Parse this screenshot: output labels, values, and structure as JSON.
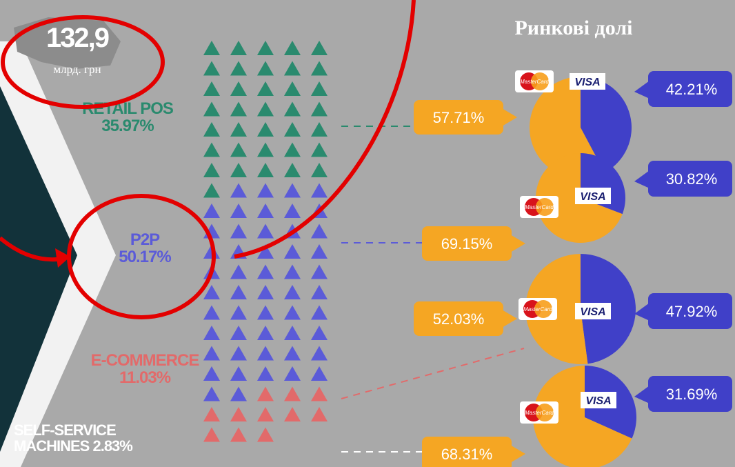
{
  "total": {
    "amount": "132,9",
    "unit": "млрд. грн"
  },
  "segments": [
    {
      "name": "RETAIL POS",
      "share": 35.97,
      "share_label": "35.97%",
      "color": "#2a8a6e"
    },
    {
      "name": "P2P",
      "share": 50.17,
      "share_label": "50.17%",
      "color": "#5b5bd8"
    },
    {
      "name": "E-COMMERCE",
      "share": 11.03,
      "share_label": "11.03%",
      "color": "#e26a6a"
    },
    {
      "name": "SELF-SERVICE MACHINES",
      "share": 2.83,
      "share_label": "2.83%",
      "color": "#ffffff"
    }
  ],
  "market_title": "Ринкові долі",
  "brands": [
    "MasterCard",
    "VISA"
  ],
  "brand_colors": [
    "#f5a623",
    "#4040c8"
  ],
  "pies": [
    {
      "values": [
        57.71,
        42.21
      ],
      "value_labels": [
        "57.71%",
        "42.21%"
      ]
    },
    {
      "values": [
        69.15,
        30.82
      ],
      "value_labels": [
        "69.15%",
        "30.82%"
      ]
    },
    {
      "values": [
        52.03,
        47.92
      ],
      "value_labels": [
        "52.03%",
        "47.92%"
      ]
    },
    {
      "values": [
        68.31,
        31.69
      ],
      "value_labels": [
        "68.31%",
        "31.69%"
      ]
    }
  ]
}
